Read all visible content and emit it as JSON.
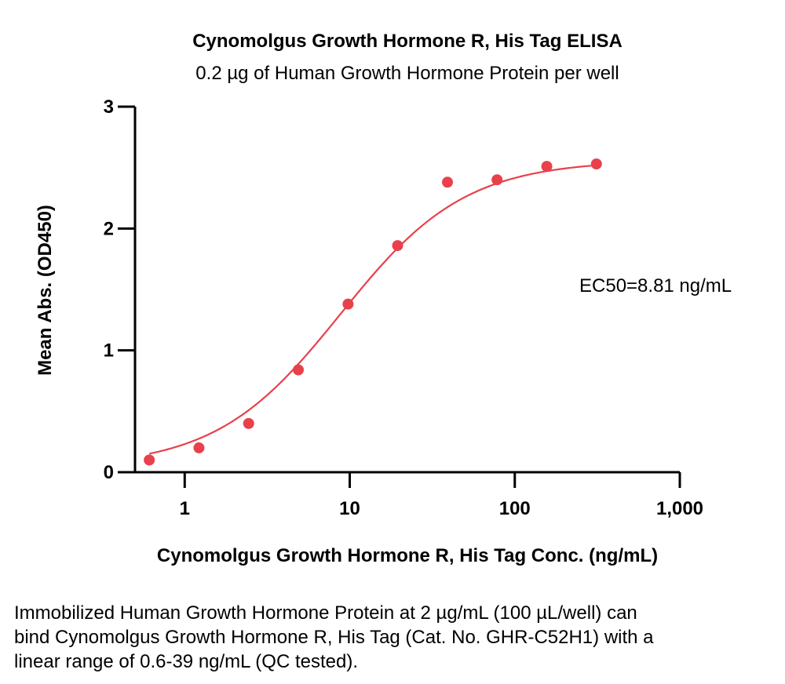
{
  "chart_data": {
    "type": "scatter",
    "title": "Cynomolgus Growth Hormone R, His Tag ELISA",
    "subtitle": "0.2 µg of Human Growth Hormone Protein per well",
    "xlabel": "Cynomolgus Growth Hormone R, His Tag Conc. (ng/mL)",
    "ylabel": "Mean Abs. (OD450)",
    "x_scale": "log",
    "xlim": [
      0.5,
      1000
    ],
    "ylim": [
      0,
      3
    ],
    "x_ticks": [
      1,
      10,
      100,
      1000
    ],
    "x_tick_labels": [
      "1",
      "10",
      "100",
      "1,000"
    ],
    "y_ticks": [
      0,
      1,
      2,
      3
    ],
    "y_tick_labels": [
      "0",
      "1",
      "2",
      "3"
    ],
    "grid": false,
    "color": "#e8414b",
    "series": [
      {
        "x": [
          0.61,
          1.22,
          2.44,
          4.88,
          9.77,
          19.5,
          39.1,
          78.1,
          156.3,
          312.5
        ],
        "y": [
          0.1,
          0.2,
          0.4,
          0.84,
          1.38,
          1.86,
          2.38,
          2.4,
          2.51,
          2.53
        ]
      }
    ],
    "fit": {
      "bottom": 0.04,
      "top": 2.56,
      "ec50": 8.81,
      "hill": 1.15
    },
    "annotations": [
      "EC50=8.81 ng/mL"
    ]
  },
  "caption": "Immobilized Human Growth Hormone Protein at 2 µg/mL (100 µL/well) can bind Cynomolgus Growth Hormone R, His Tag (Cat. No. GHR-C52H1) with a linear range of 0.6-39 ng/mL (QC tested)."
}
